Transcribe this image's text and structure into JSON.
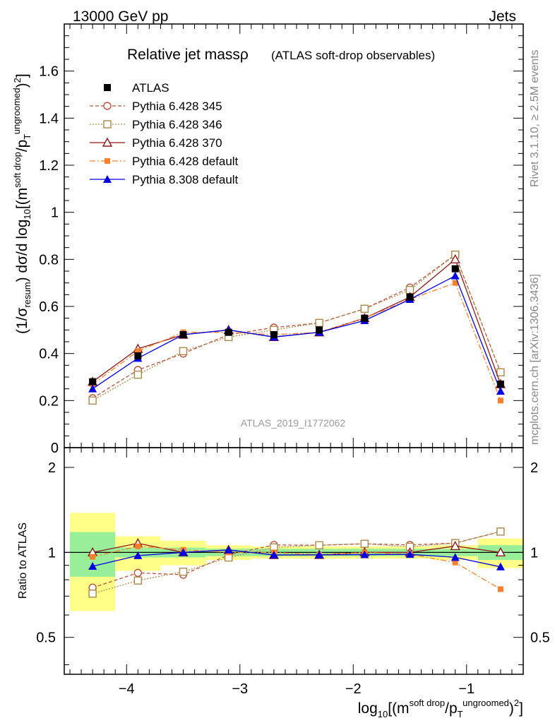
{
  "header": {
    "left": "13000 GeV pp",
    "right": "Jets"
  },
  "side_labels": {
    "rivet": "Rivet 3.1.10, ≥ 2.5M events",
    "mcplots": "mcplots.cern.ch [arXiv:1306.3436]"
  },
  "plot": {
    "title_main": "Relative jet massρ",
    "title_sub": "(ATLAS soft-drop observables)",
    "watermark": "ATLAS_2019_I1772062",
    "ylabel_main": "(1/σresum) dσ/d log10[(m soft drop/pT ungroomed)2]",
    "ylabel_ratio": "Ratio to ATLAS",
    "xlabel": "log10[(m soft drop/pT ungroomed)2]"
  },
  "colors": {
    "ATLAS": "#000000",
    "P345": "#b5533c",
    "P346": "#a8894a",
    "P370": "#8b1a1a",
    "P6def": "#ff7f2a",
    "P8def": "#0000e0",
    "band_inner": "#99ee99",
    "band_outer": "#ffff88"
  },
  "chart_data": {
    "type": "scatter",
    "x": [
      -4.3,
      -3.9,
      -3.5,
      -3.1,
      -2.7,
      -2.3,
      -1.9,
      -1.5,
      -1.1,
      -0.7
    ],
    "xlim": [
      -4.55,
      -0.5
    ],
    "xticks": [
      "−4",
      "−3",
      "−2",
      "−1"
    ],
    "xtick_values": [
      -4,
      -3,
      -2,
      -1
    ],
    "main_ylim": [
      0,
      1.8
    ],
    "main_yticks": [
      "0",
      "0.2",
      "0.4",
      "0.6",
      "0.8",
      "1",
      "1.2",
      "1.4",
      "1.6"
    ],
    "main_ytick_values": [
      0,
      0.2,
      0.4,
      0.6,
      0.8,
      1.0,
      1.2,
      1.4,
      1.6
    ],
    "ratio_ylim": [
      0.37,
      2.35
    ],
    "ratio_yticks": [
      "0.5",
      "1",
      "2"
    ],
    "ratio_ytick_values": [
      0.5,
      1,
      2
    ],
    "bins": [
      [
        -4.5,
        -4.1
      ],
      [
        -4.1,
        -3.7
      ],
      [
        -3.7,
        -3.3
      ],
      [
        -3.3,
        -2.9
      ],
      [
        -2.9,
        -2.5
      ],
      [
        -2.5,
        -2.1
      ],
      [
        -2.1,
        -1.7
      ],
      [
        -1.7,
        -1.3
      ],
      [
        -1.3,
        -0.9
      ],
      [
        -0.9,
        -0.5
      ]
    ],
    "band_inner": [
      0.18,
      0.04,
      0.04,
      0.03,
      0.03,
      0.03,
      0.03,
      0.03,
      0.03,
      0.06
    ],
    "band_outer": [
      0.38,
      0.14,
      0.1,
      0.06,
      0.05,
      0.05,
      0.05,
      0.05,
      0.06,
      0.12
    ],
    "series": [
      {
        "name": "ATLAS",
        "key": "ATLAS",
        "marker": "square-filled",
        "line": "none",
        "values": [
          0.28,
          0.39,
          0.48,
          0.49,
          0.48,
          0.5,
          0.55,
          0.64,
          0.76,
          0.27
        ]
      },
      {
        "name": "Pythia 6.428 345",
        "key": "P345",
        "marker": "circle-open",
        "line": "dashed",
        "values": [
          0.21,
          0.33,
          0.4,
          0.48,
          0.51,
          0.53,
          0.59,
          0.68,
          0.82,
          0.32
        ]
      },
      {
        "name": "Pythia 6.428 346",
        "key": "P346",
        "marker": "square-open",
        "line": "dotted",
        "values": [
          0.2,
          0.31,
          0.41,
          0.47,
          0.5,
          0.53,
          0.59,
          0.67,
          0.82,
          0.32
        ]
      },
      {
        "name": "Pythia 6.428 370",
        "key": "P370",
        "marker": "triangle-open",
        "line": "solid",
        "values": [
          0.28,
          0.42,
          0.48,
          0.5,
          0.47,
          0.49,
          0.55,
          0.64,
          0.8,
          0.27
        ]
      },
      {
        "name": "Pythia 6.428 default",
        "key": "P6def",
        "marker": "square-small",
        "line": "dashdot",
        "values": [
          0.27,
          0.41,
          0.49,
          0.49,
          0.48,
          0.49,
          0.55,
          0.63,
          0.7,
          0.2
        ]
      },
      {
        "name": "Pythia 8.308 default",
        "key": "P8def",
        "marker": "triangle-filled",
        "line": "solid",
        "values": [
          0.25,
          0.38,
          0.48,
          0.5,
          0.47,
          0.49,
          0.54,
          0.63,
          0.73,
          0.24
        ]
      }
    ]
  }
}
